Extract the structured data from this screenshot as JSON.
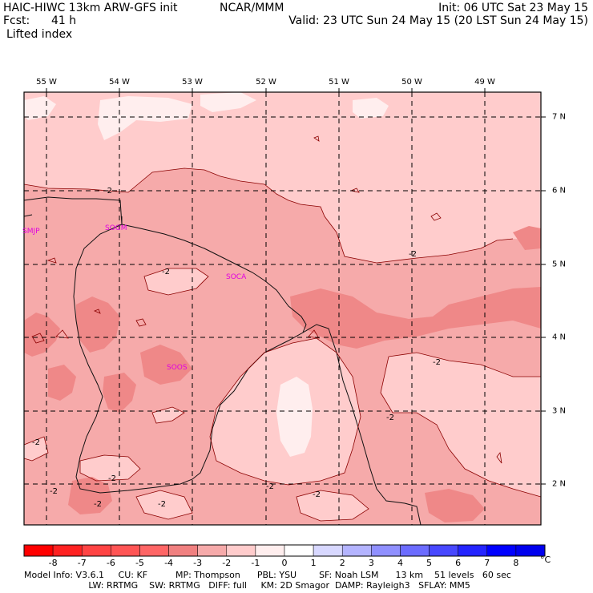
{
  "header": {
    "model_title": "HAIC-HIWC 13km ARW-GFS init",
    "org": "NCAR/MMM",
    "init": "Init: 06 UTC Sat 23 May 15",
    "fcst_label": "Fcst:",
    "fcst_value": "41 h",
    "valid": "Valid: 23 UTC Sun 24 May 15 (20 LST Sun 24 May 15)",
    "field": "Lifted index"
  },
  "map": {
    "lon_labels": [
      "55 W",
      "54 W",
      "53 W",
      "52 W",
      "51 W",
      "50 W",
      "49 W"
    ],
    "lat_labels": [
      "7 N",
      "6 N",
      "5 N",
      "4 N",
      "3 N",
      "2 N"
    ],
    "stations": [
      "SMJP",
      "SOGM",
      "SOCA",
      "SOOS"
    ],
    "contour_labels": [
      "-2",
      "-2",
      "-2",
      "-2",
      "-2",
      "-2",
      "-2",
      "-2",
      "-2",
      "-2",
      "-2"
    ],
    "colors": {
      "lightest": "#ffeeee",
      "light": "#ffcccc",
      "mid": "#f6aaaa",
      "dark": "#ef8888",
      "border": "#111111",
      "station": "#e000e0"
    }
  },
  "colorbar": {
    "labels": [
      "-8",
      "-7",
      "-6",
      "-5",
      "-4",
      "-3",
      "-2",
      "-1",
      "0",
      "1",
      "2",
      "3",
      "4",
      "5",
      "6",
      "7",
      "8"
    ],
    "unit": "°C",
    "colors": [
      "#ff0000",
      "#ff2222",
      "#ff4444",
      "#ff5555",
      "#ff6666",
      "#f08080",
      "#f6aaaa",
      "#ffcccc",
      "#ffeeee",
      "#ffffff",
      "#d8d8ff",
      "#b4b4ff",
      "#9090ff",
      "#6c6cff",
      "#4848ff",
      "#2424ff",
      "#0000ff",
      "#0000ee"
    ]
  },
  "footer": {
    "line1": "Model Info: V3.6.1     CU: KF          MP: Thompson      PBL: YSU        SF: Noah LSM      13 km    51 levels   60 sec",
    "line2": "                       LW: RRTMG    SW: RRTMG   DIFF: full     KM: 2D Smagor  DAMP: Rayleigh3   SFLAY: MM5"
  }
}
